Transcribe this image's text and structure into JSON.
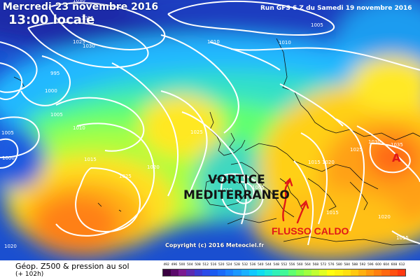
{
  "header": {
    "date": "Mercredi 23 novembre 2016",
    "time": "13:00 locale",
    "run": "Run GFS 6 Z du Samedi 19 novembre 2016"
  },
  "annotations": {
    "vortex_line1": "VORTICE",
    "vortex_line2": "MEDITERRANEO",
    "flow": "FLUSSO CALDO",
    "high_marker": "A"
  },
  "copyright": "Copyright (c) 2016 Meteociel.fr",
  "footer": {
    "line1": "Géop. Z500 & pression au sol",
    "line2": "(+ 102h)"
  },
  "isobars": [
    {
      "label": "1030"
    },
    {
      "label": "1035"
    },
    {
      "label": "1030"
    },
    {
      "label": "1025"
    },
    {
      "label": "995"
    },
    {
      "label": "1000"
    },
    {
      "label": "1005"
    },
    {
      "label": "1005"
    },
    {
      "label": "1000"
    },
    {
      "label": "1010"
    },
    {
      "label": "1015"
    },
    {
      "label": "1020"
    },
    {
      "label": "1025"
    },
    {
      "label": "1020"
    },
    {
      "label": "1010"
    },
    {
      "label": "1010"
    },
    {
      "label": "1005"
    },
    {
      "label": "1025"
    },
    {
      "label": "1010"
    },
    {
      "label": "1005"
    },
    {
      "label": "1020"
    },
    {
      "label": "1015"
    },
    {
      "label": "1030"
    },
    {
      "label": "1035"
    },
    {
      "label": "1025"
    },
    {
      "label": "1015"
    },
    {
      "label": "1020"
    },
    {
      "label": "1015"
    }
  ],
  "scale": {
    "labels": [
      "492",
      "496",
      "500",
      "504",
      "508",
      "512",
      "516",
      "520",
      "524",
      "528",
      "532",
      "536",
      "540",
      "544",
      "548",
      "552",
      "556",
      "560",
      "564",
      "568",
      "572",
      "576",
      "580",
      "584",
      "588",
      "592",
      "596",
      "600",
      "604",
      "608",
      "612"
    ],
    "colors": [
      "#3a0040",
      "#5a0a6a",
      "#7a1a90",
      "#5a2ab0",
      "#3a3ad0",
      "#2a4ae8",
      "#1a5af0",
      "#1a6af8",
      "#1a80ff",
      "#1a98ff",
      "#1ab0ff",
      "#10c8ff",
      "#10dcf0",
      "#20e8d8",
      "#30f0b8",
      "#40f898",
      "#60ff70",
      "#80ff50",
      "#a0ff40",
      "#c0ff30",
      "#e0ff20",
      "#ffff10",
      "#fff010",
      "#ffe010",
      "#ffc810",
      "#ffb010",
      "#ff9810",
      "#ff8010",
      "#ff6810",
      "#ff5010",
      "#ff3810"
    ]
  }
}
